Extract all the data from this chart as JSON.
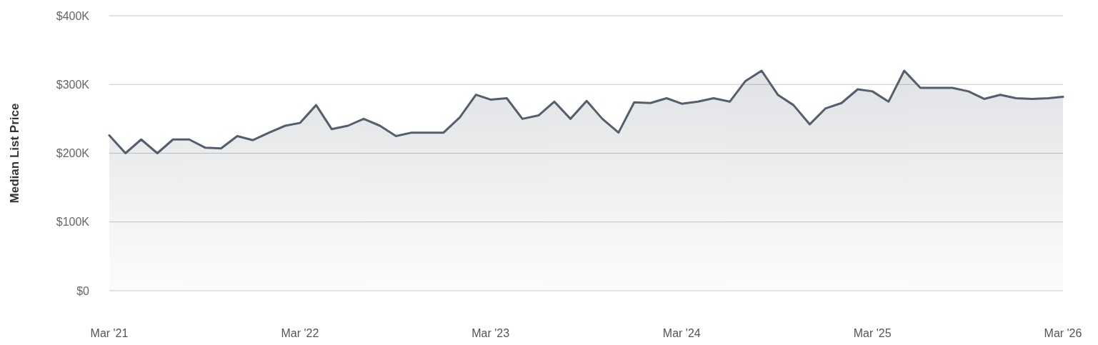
{
  "chart_data": {
    "type": "area",
    "ylabel": "Median List Price",
    "x": [
      "2021-03",
      "2021-04",
      "2021-05",
      "2021-06",
      "2021-07",
      "2021-08",
      "2021-09",
      "2021-10",
      "2021-11",
      "2021-12",
      "2022-01",
      "2022-02",
      "2022-03",
      "2022-04",
      "2022-05",
      "2022-06",
      "2022-07",
      "2022-08",
      "2022-09",
      "2022-10",
      "2022-11",
      "2022-12",
      "2023-01",
      "2023-02",
      "2023-03",
      "2023-04",
      "2023-05",
      "2023-06",
      "2023-07",
      "2023-08",
      "2023-09",
      "2023-10",
      "2023-11",
      "2023-12",
      "2024-01",
      "2024-02",
      "2024-03",
      "2024-04",
      "2024-05",
      "2024-06",
      "2024-07",
      "2024-08",
      "2024-09",
      "2024-10",
      "2024-11",
      "2024-12",
      "2025-01",
      "2025-02",
      "2025-03",
      "2025-04",
      "2025-05",
      "2025-06",
      "2025-07",
      "2025-08",
      "2025-09",
      "2025-10",
      "2025-11",
      "2025-12",
      "2026-01",
      "2026-02",
      "2026-03"
    ],
    "series": [
      {
        "color": "#545f6e",
        "values": [
          226,
          200,
          220,
          200,
          220,
          220,
          208,
          207,
          225,
          219,
          230,
          240,
          244,
          270,
          235,
          240,
          250,
          240,
          225,
          230,
          230,
          230,
          252,
          285,
          278,
          280,
          250,
          255,
          275,
          250,
          276,
          250,
          230,
          274,
          273,
          280,
          272,
          275,
          280,
          275,
          305,
          320,
          285,
          270,
          242,
          265,
          273,
          293,
          290,
          275,
          320,
          295,
          295,
          295,
          290,
          279,
          285,
          280,
          279,
          280,
          282
        ]
      }
    ],
    "xlim": [
      "2021-03",
      "2026-03"
    ],
    "xticks": [
      {
        "value": "2021-03",
        "label": "Mar '21"
      },
      {
        "value": "2022-03",
        "label": "Mar '22"
      },
      {
        "value": "2023-03",
        "label": "Mar '23"
      },
      {
        "value": "2024-03",
        "label": "Mar '24"
      },
      {
        "value": "2025-03",
        "label": "Mar '25"
      },
      {
        "value": "2026-03",
        "label": "Mar '26"
      }
    ],
    "ylim": [
      0,
      400
    ],
    "yticks": [
      {
        "value": 0,
        "label": "$0"
      },
      {
        "value": 100,
        "label": "$100K"
      },
      {
        "value": 200,
        "label": "$200K"
      },
      {
        "value": 300,
        "label": "$300K"
      },
      {
        "value": 400,
        "label": "$400K"
      }
    ],
    "grid": "y",
    "marker": "none",
    "line_style": "solid"
  }
}
